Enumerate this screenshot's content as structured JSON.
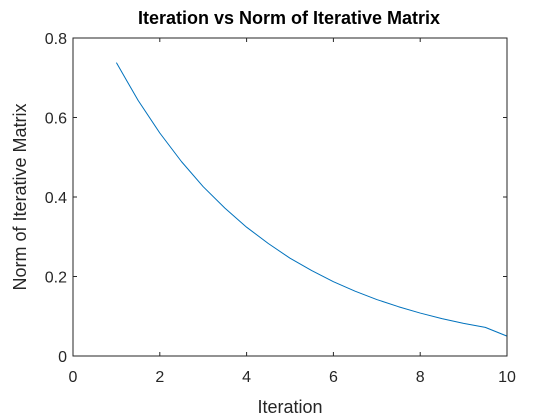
{
  "chart_data": {
    "type": "line",
    "title": "Iteration vs Norm of Iterative Matrix",
    "xlabel": "Iteration",
    "ylabel": "Norm of Iterative Matrix",
    "xlim": [
      0,
      10
    ],
    "ylim": [
      0,
      0.8
    ],
    "xticks": [
      0,
      2,
      4,
      6,
      8,
      10
    ],
    "xtick_labels": [
      "0",
      "2",
      "4",
      "6",
      "8",
      "10"
    ],
    "yticks": [
      0,
      0.2,
      0.4,
      0.6,
      0.8
    ],
    "ytick_labels": [
      "0",
      "0.2",
      "0.4",
      "0.6",
      "0.8"
    ],
    "grid": false,
    "box": true,
    "series": [
      {
        "color": "#0072BD",
        "x": [
          1,
          1.5,
          2,
          2.5,
          3,
          3.5,
          4,
          4.5,
          5,
          5.5,
          6,
          6.5,
          7,
          7.5,
          8,
          8.5,
          9,
          9.5,
          10
        ],
        "y": [
          0.738,
          0.643,
          0.561,
          0.489,
          0.426,
          0.372,
          0.324,
          0.283,
          0.246,
          0.215,
          0.187,
          0.163,
          0.142,
          0.124,
          0.108,
          0.094,
          0.082,
          0.072,
          0.05
        ]
      }
    ]
  }
}
